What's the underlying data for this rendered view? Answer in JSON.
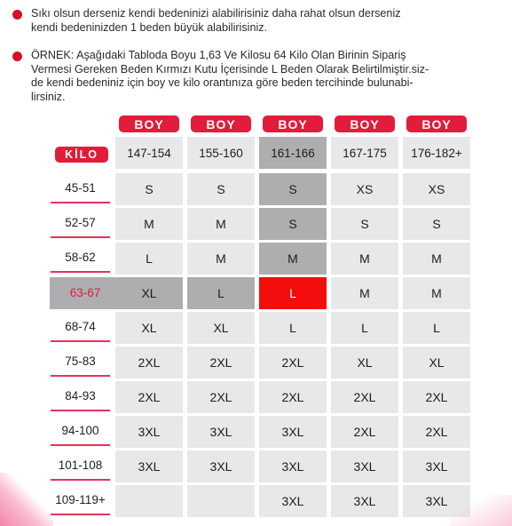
{
  "notes": [
    "Sıkı olsun derseniz kendi bedeninizi alabilirisiniz daha rahat olsun derseniz\nkendi bedeninizden 1 beden büyük alabilirisiniz.",
    "ÖRNEK: Aşağıdaki Tabloda Boyu 1,63 Ve Kilosu 64 Kilo Olan Birinin Sipariş\nVermesi Gereken Beden Kırmızı Kutu İçerisinde L Beden Olarak Belirtilmiştir.siz-\nde kendi bedeniniz için boy ve kilo orantınıza göre beden tercihinde bulunabi-\nlirsiniz."
  ],
  "table": {
    "boy_label": "BOY",
    "kilo_label": "KİLO",
    "height_ranges": [
      "147-154",
      "155-160",
      "161-166",
      "167-175",
      "176-182+"
    ],
    "rows": [
      {
        "kilo": "45-51",
        "sizes": [
          "S",
          "S",
          "S",
          "XS",
          "XS"
        ]
      },
      {
        "kilo": "52-57",
        "sizes": [
          "M",
          "M",
          "S",
          "S",
          "S"
        ]
      },
      {
        "kilo": "58-62",
        "sizes": [
          "L",
          "M",
          "M",
          "M",
          "M"
        ]
      },
      {
        "kilo": "63-67",
        "sizes": [
          "XL",
          "L",
          "L",
          "M",
          "M"
        ]
      },
      {
        "kilo": "68-74",
        "sizes": [
          "XL",
          "XL",
          "L",
          "L",
          "L"
        ]
      },
      {
        "kilo": "75-83",
        "sizes": [
          "2XL",
          "2XL",
          "2XL",
          "XL",
          "XL"
        ]
      },
      {
        "kilo": "84-93",
        "sizes": [
          "2XL",
          "2XL",
          "2XL",
          "2XL",
          "2XL"
        ]
      },
      {
        "kilo": "94-100",
        "sizes": [
          "3XL",
          "3XL",
          "3XL",
          "2XL",
          "2XL"
        ]
      },
      {
        "kilo": "101-108",
        "sizes": [
          "3XL",
          "3XL",
          "3XL",
          "3XL",
          "3XL"
        ]
      },
      {
        "kilo": "109-119+",
        "sizes": [
          "",
          "",
          "3XL",
          "3XL",
          "3XL"
        ]
      }
    ],
    "highlight": {
      "column_index": 2,
      "row_index": 3
    },
    "colors": {
      "accent_red": "#e21c3a",
      "target_red": "#f30d0d",
      "cell_gray": "#e8e8ea",
      "highlight_gray": "#aeaeb1"
    }
  }
}
